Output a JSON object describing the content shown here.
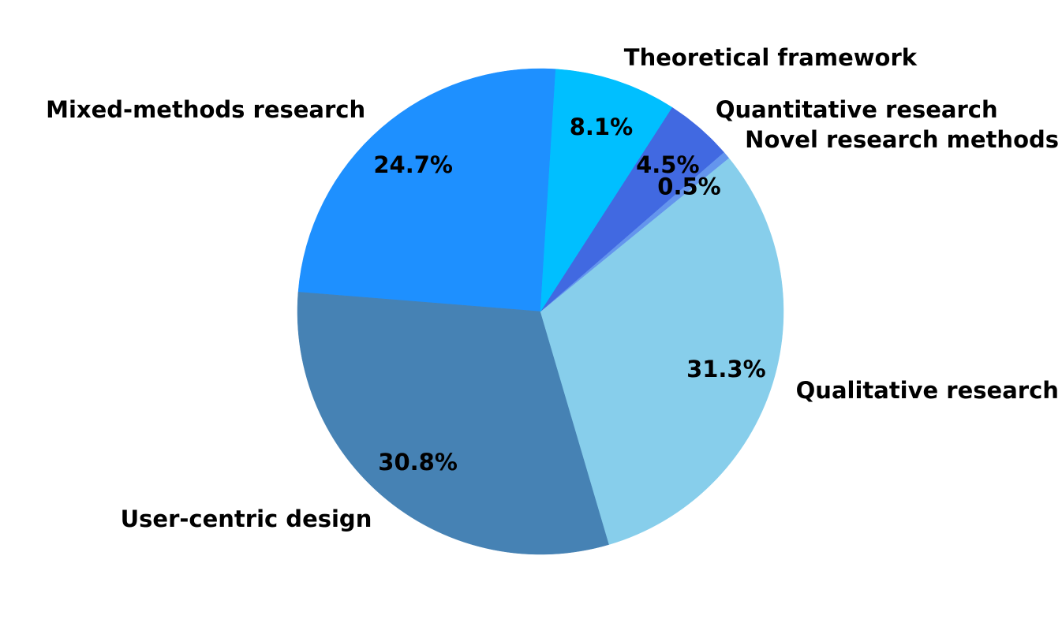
{
  "chart_data": {
    "type": "pie",
    "title": "",
    "slices": [
      {
        "label": "Mixed-methods research",
        "value": 24.7,
        "pct_label": "24.7%",
        "color": "#1E90FF"
      },
      {
        "label": "User-centric design",
        "value": 30.8,
        "pct_label": "30.8%",
        "color": "#4682B4"
      },
      {
        "label": "Qualitative research",
        "value": 31.3,
        "pct_label": "31.3%",
        "color": "#87CEEB"
      },
      {
        "label": "Novel research methods",
        "value": 0.5,
        "pct_label": "0.5%",
        "color": "#6495ED"
      },
      {
        "label": "Quantitative research",
        "value": 4.5,
        "pct_label": "4.5%",
        "color": "#4169E1"
      },
      {
        "label": "Theoretical framework",
        "value": 8.1,
        "pct_label": "8.1%",
        "color": "#00BFFF"
      }
    ]
  }
}
